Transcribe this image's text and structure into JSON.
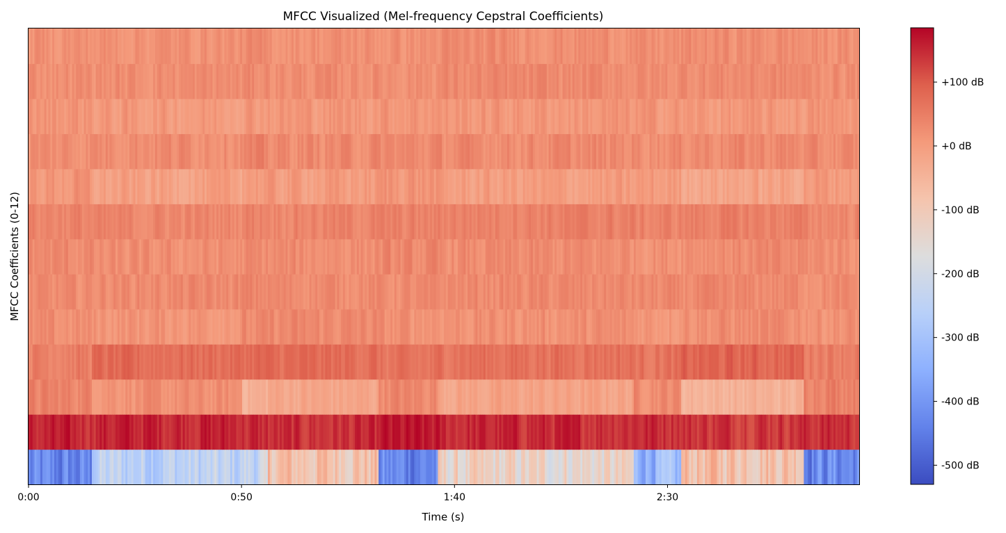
{
  "chart_data": {
    "type": "heatmap",
    "title": "MFCC Visualized (Mel-frequency Cepstral Coefficients)",
    "xlabel": "Time (s)",
    "ylabel": "MFCC Coefficients (0-12)",
    "x_unit": "seconds",
    "xlim": [
      0,
      195
    ],
    "x_ticks": [
      {
        "value": 0,
        "label": "0:00"
      },
      {
        "value": 50,
        "label": "0:50"
      },
      {
        "value": 100,
        "label": "1:40"
      },
      {
        "value": 150,
        "label": "2:30"
      }
    ],
    "y_range": [
      0,
      12
    ],
    "colormap": "coolwarm",
    "colorbar": {
      "range": [
        -530,
        185
      ],
      "ticks": [
        {
          "value": 100,
          "label": "+100 dB"
        },
        {
          "value": 0,
          "label": "+0 dB"
        },
        {
          "value": -100,
          "label": "-100 dB"
        },
        {
          "value": -200,
          "label": "-200 dB"
        },
        {
          "value": -300,
          "label": "-300 dB"
        },
        {
          "value": -400,
          "label": "-400 dB"
        },
        {
          "value": -500,
          "label": "-500 dB"
        }
      ]
    },
    "segments": [
      0,
      15,
      50,
      56,
      82,
      96,
      142,
      153,
      182,
      195
    ],
    "coefficient_means": [
      {
        "coef": 0,
        "values": [
          -440,
          -250,
          -230,
          -80,
          -430,
          -140,
          -330,
          -70,
          -420
        ],
        "jitter": 60
      },
      {
        "coef": 1,
        "values": [
          150,
          155,
          145,
          140,
          160,
          148,
          150,
          140,
          145
        ],
        "jitter": 25
      },
      {
        "coef": 2,
        "values": [
          40,
          20,
          -40,
          -20,
          35,
          -15,
          30,
          -45,
          50
        ],
        "jitter": 20
      },
      {
        "coef": 3,
        "values": [
          50,
          75,
          80,
          75,
          60,
          70,
          65,
          85,
          55
        ],
        "jitter": 20
      },
      {
        "coef": 4,
        "values": [
          20,
          15,
          25,
          30,
          20,
          20,
          15,
          25,
          20
        ],
        "jitter": 20
      },
      {
        "coef": 5,
        "values": [
          25,
          30,
          35,
          30,
          25,
          30,
          28,
          30,
          25
        ],
        "jitter": 18
      },
      {
        "coef": 6,
        "values": [
          30,
          20,
          25,
          25,
          30,
          25,
          22,
          28,
          25
        ],
        "jitter": 20
      },
      {
        "coef": 7,
        "values": [
          40,
          35,
          45,
          40,
          40,
          45,
          40,
          45,
          35
        ],
        "jitter": 18
      },
      {
        "coef": 8,
        "values": [
          10,
          -10,
          5,
          0,
          15,
          -5,
          0,
          -15,
          5
        ],
        "jitter": 22
      },
      {
        "coef": 9,
        "values": [
          25,
          30,
          35,
          30,
          30,
          30,
          28,
          32,
          25
        ],
        "jitter": 20
      },
      {
        "coef": 10,
        "values": [
          15,
          5,
          10,
          10,
          15,
          10,
          10,
          5,
          10
        ],
        "jitter": 20
      },
      {
        "coef": 11,
        "values": [
          25,
          25,
          30,
          25,
          25,
          30,
          25,
          30,
          25
        ],
        "jitter": 18
      },
      {
        "coef": 12,
        "values": [
          20,
          20,
          25,
          20,
          20,
          25,
          20,
          25,
          20
        ],
        "jitter": 18
      }
    ]
  }
}
